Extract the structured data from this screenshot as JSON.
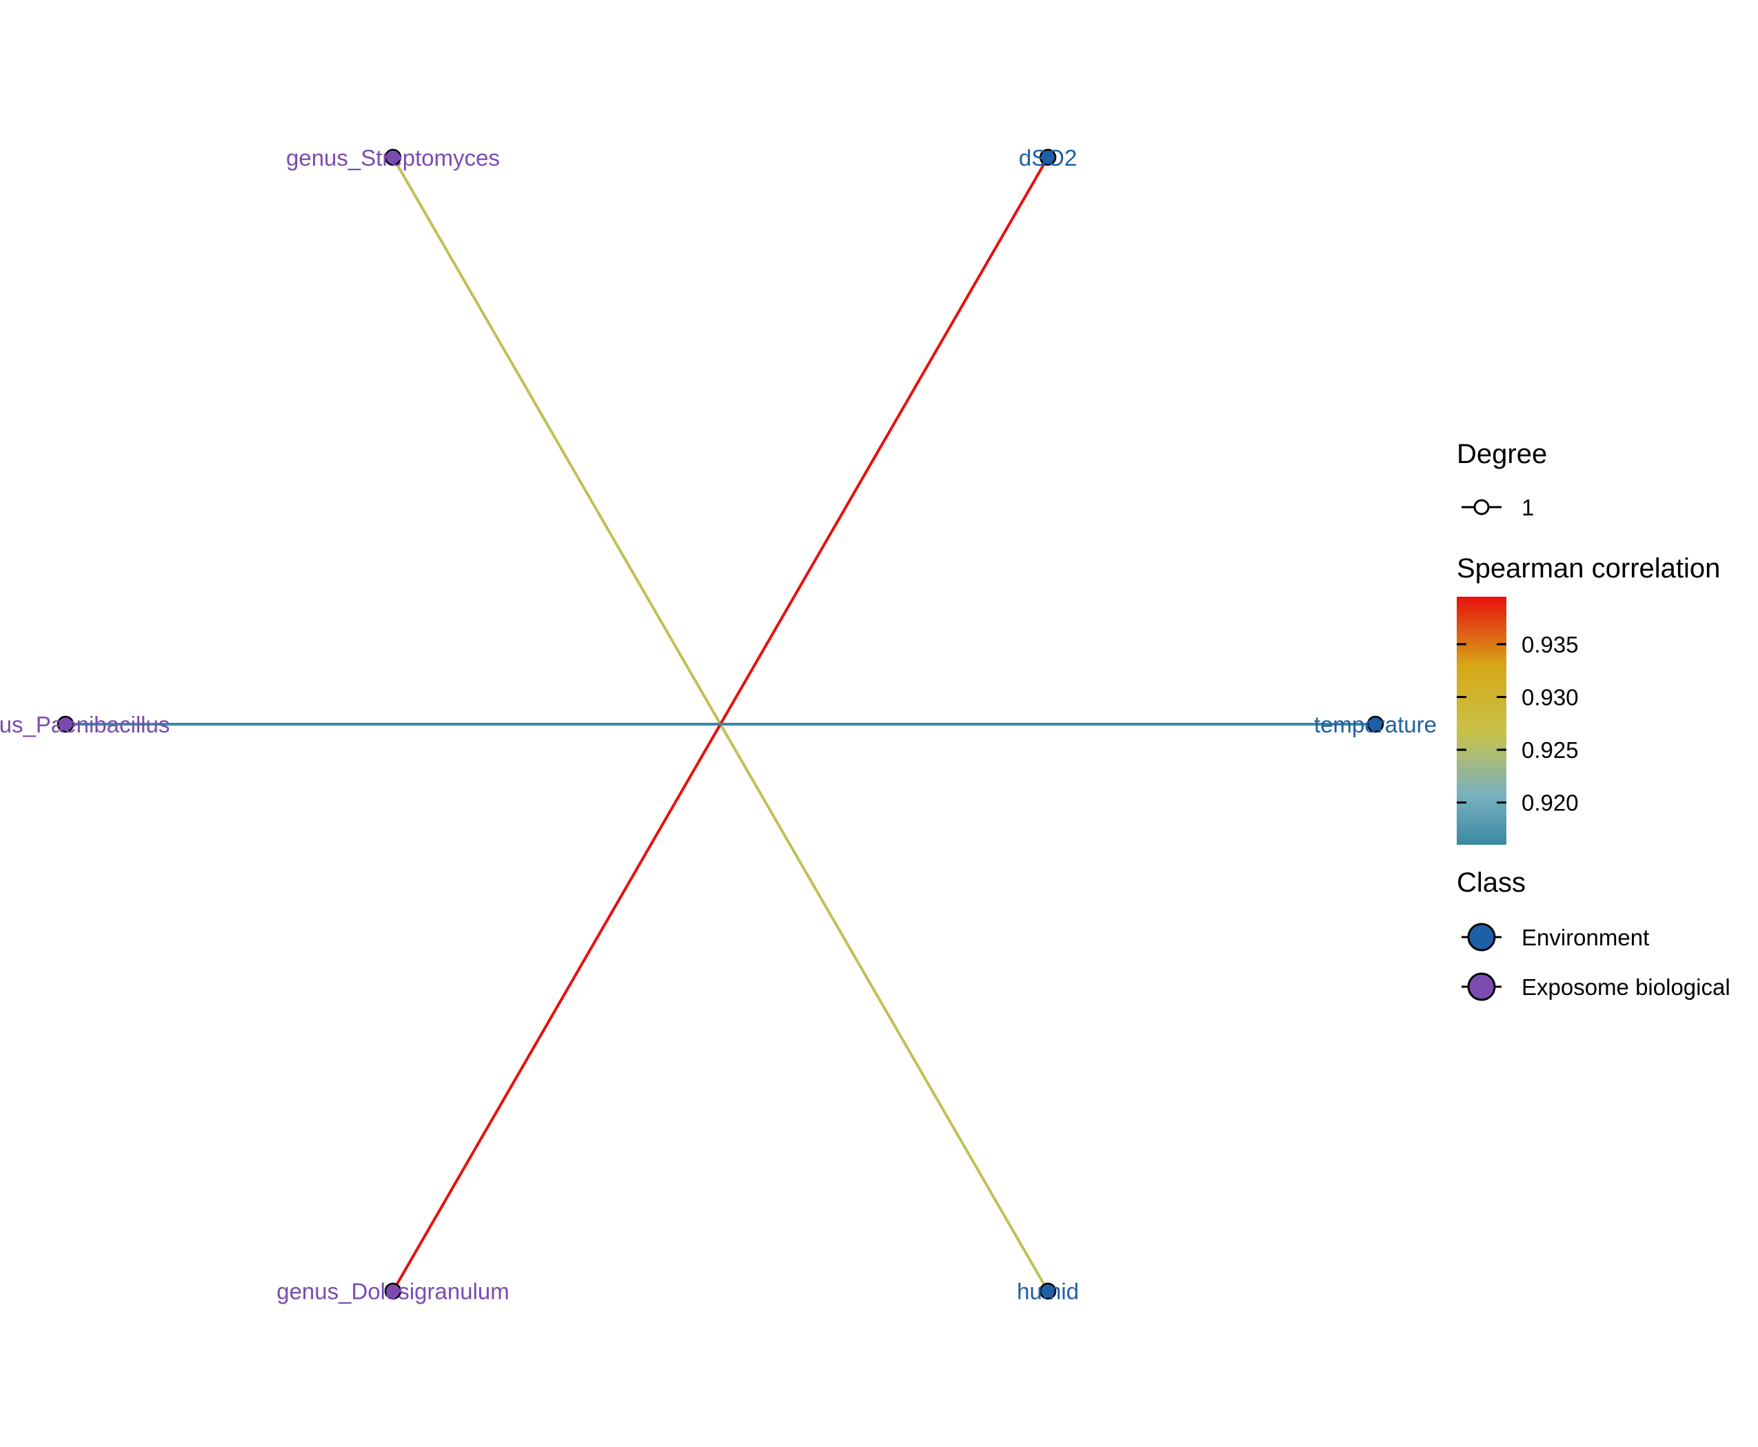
{
  "nodes": [
    {
      "id": "dSO2",
      "label": "dSO2",
      "class": "Environment"
    },
    {
      "id": "temperature",
      "label": "temperature",
      "class": "Environment"
    },
    {
      "id": "humid",
      "label": "humid",
      "class": "Environment"
    },
    {
      "id": "genus_Dolosigranulum",
      "label": "genus_Dolosigranulum",
      "class": "Exposome biological"
    },
    {
      "id": "genus_Paenibacillus",
      "label": "genus_Paenibacillus",
      "class": "Exposome biological"
    },
    {
      "id": "genus_Streptomyces",
      "label": "genus_Streptomyces",
      "class": "Exposome biological"
    }
  ],
  "edges": [
    {
      "from": "genus_Streptomyces",
      "to": "humid",
      "correlation": 0.926
    },
    {
      "from": "dSO2",
      "to": "genus_Dolosigranulum",
      "correlation": 0.9395
    },
    {
      "from": "genus_Paenibacillus",
      "to": "temperature",
      "correlation": 0.916
    }
  ],
  "colors": {
    "Environment": "#1f5fa6",
    "Exposome biological": "#7b4bb0",
    "scale_high": "#e8100e",
    "scale_mid_high": "#d6a817",
    "scale_mid": "#c8c24a",
    "scale_mid_low": "#79b0c0",
    "scale_low": "#3a8aa3"
  },
  "legend": {
    "degree": {
      "title": "Degree",
      "value": "1"
    },
    "correlation": {
      "title": "Spearman correlation",
      "min": 0.916,
      "max": 0.9395,
      "ticks": [
        "0.935",
        "0.930",
        "0.925",
        "0.920"
      ]
    },
    "class": {
      "title": "Class",
      "items": [
        "Environment",
        "Exposome biological"
      ]
    }
  }
}
